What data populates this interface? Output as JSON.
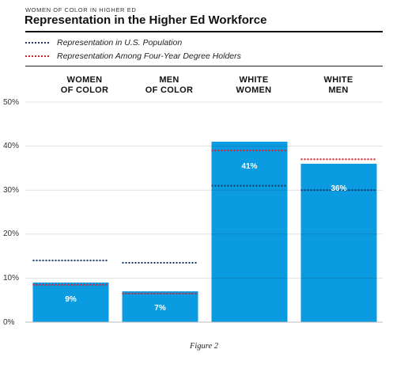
{
  "header": {
    "kicker": "WOMEN OF COLOR IN HIGHER ED",
    "title": "Representation in the Higher Ed Workforce"
  },
  "legend": [
    {
      "label": "Representation in U.S. Population",
      "color": "#1a3a6b"
    },
    {
      "label": "Representation Among Four-Year Degree Holders",
      "color": "#d0202e"
    }
  ],
  "caption": "Figure 2",
  "chart_data": {
    "type": "bar",
    "title": "Representation in the Higher Ed Workforce",
    "categories": [
      {
        "line1": "WOMEN",
        "line2": "OF COLOR"
      },
      {
        "line1": "MEN",
        "line2": "OF COLOR"
      },
      {
        "line1": "WHITE",
        "line2": "WOMEN"
      },
      {
        "line1": "WHITE",
        "line2": "MEN"
      }
    ],
    "values": [
      9,
      7,
      41,
      36
    ],
    "value_labels": [
      "9%",
      "7%",
      "41%",
      "36%"
    ],
    "us_population": [
      14,
      13.5,
      31,
      30
    ],
    "degree_holders": [
      8.5,
      6.5,
      39,
      37
    ],
    "ylim": [
      0,
      50
    ],
    "yticks": [
      0,
      10,
      20,
      30,
      40,
      50
    ],
    "ytick_labels": [
      "0%",
      "10%",
      "20%",
      "30%",
      "40%",
      "50%"
    ],
    "bar_color": "#0a9be0",
    "grid": true
  }
}
